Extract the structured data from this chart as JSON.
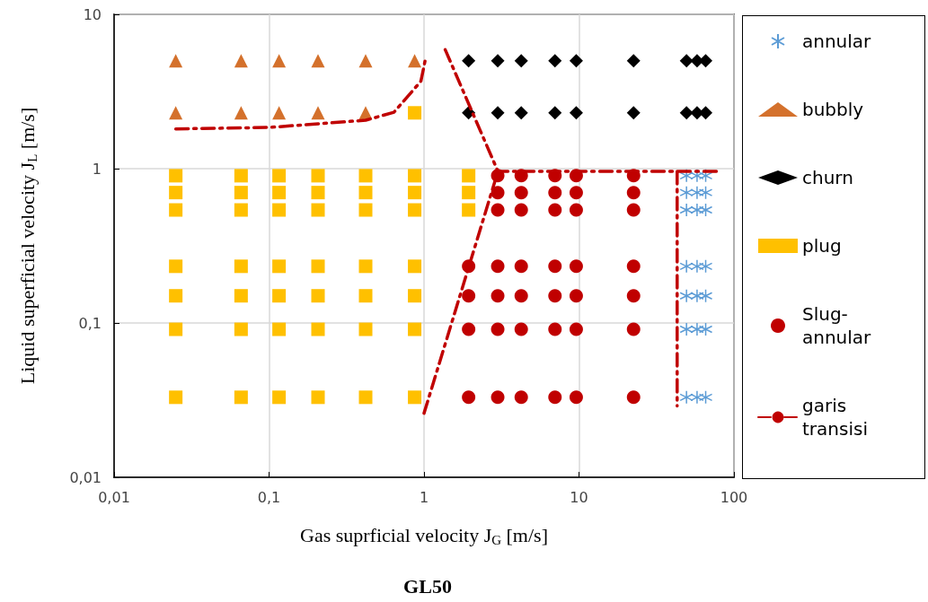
{
  "chart_data": {
    "type": "scatter",
    "title": "GL50",
    "xlabel": "Gas suprficial velocity J$_{G}$ [m/s]",
    "ylabel": "Liquid superficial velocity J$_{L}$ [m/s]",
    "log": "xy",
    "grid": true,
    "legend": "right",
    "xlim": [
      0.01,
      100
    ],
    "xticks": [
      {
        "value": 0.01,
        "label": "0,01"
      },
      {
        "value": 0.1,
        "label": "0,1"
      },
      1,
      10,
      100
    ],
    "ylim": [
      0.01,
      10
    ],
    "yticks": [
      {
        "value": 0.01,
        "label": "0,01"
      },
      {
        "value": 0.1,
        "label": "0,1"
      },
      1,
      10
    ],
    "series": [
      {
        "name": "annular",
        "color": "#5b9bd5",
        "marker": "cross",
        "x": [
          49.4,
          57.8,
          65.7,
          49.4,
          57.8,
          65.7,
          49.4,
          57.8,
          65.7,
          49.4,
          57.8,
          65.7,
          49.4,
          57.8,
          65.7,
          49.4,
          57.8,
          65.7,
          49.4,
          57.8,
          65.7
        ],
        "values": [
          0.9,
          0.9,
          0.9,
          0.7,
          0.7,
          0.7,
          0.54,
          0.54,
          0.54,
          0.233,
          0.233,
          0.233,
          0.15,
          0.15,
          0.15,
          0.091,
          0.091,
          0.091,
          0.033,
          0.033,
          0.033
        ]
      },
      {
        "name": "bubbly",
        "color": "#d4712c",
        "marker": "triangle",
        "x": [
          0.025,
          0.066,
          0.116,
          0.207,
          0.42,
          0.87,
          0.025,
          0.066,
          0.116,
          0.207,
          0.42
        ],
        "values": [
          5,
          5,
          5,
          5,
          5,
          5,
          2.3,
          2.3,
          2.3,
          2.3,
          2.3
        ]
      },
      {
        "name": "churn",
        "color": "#000000",
        "marker": "diamond",
        "x": [
          1.94,
          2.99,
          4.24,
          7,
          9.6,
          22.5,
          49.4,
          57.8,
          65.7,
          1.94,
          2.99,
          4.24,
          7,
          9.6,
          22.5,
          49.4,
          57.8,
          65.7
        ],
        "values": [
          5,
          5,
          5,
          5,
          5,
          5,
          5,
          5,
          5,
          2.3,
          2.3,
          2.3,
          2.3,
          2.3,
          2.3,
          2.3,
          2.3,
          2.3
        ]
      },
      {
        "name": "plug",
        "color": "#ffc000",
        "marker": "square",
        "x": [
          0.87,
          0.025,
          0.066,
          0.116,
          0.207,
          0.42,
          0.87,
          1.94,
          0.025,
          0.066,
          0.116,
          0.207,
          0.42,
          0.87,
          1.94,
          0.025,
          0.066,
          0.116,
          0.207,
          0.42,
          0.87,
          1.94,
          0.025,
          0.066,
          0.116,
          0.207,
          0.42,
          0.87,
          0.025,
          0.066,
          0.116,
          0.207,
          0.42,
          0.87,
          0.025,
          0.066,
          0.116,
          0.207,
          0.42,
          0.87,
          0.025,
          0.066,
          0.116,
          0.207,
          0.42,
          0.87
        ],
        "values": [
          2.3,
          0.9,
          0.9,
          0.9,
          0.9,
          0.9,
          0.9,
          0.9,
          0.7,
          0.7,
          0.7,
          0.7,
          0.7,
          0.7,
          0.7,
          0.54,
          0.54,
          0.54,
          0.54,
          0.54,
          0.54,
          0.54,
          0.233,
          0.233,
          0.233,
          0.233,
          0.233,
          0.233,
          0.15,
          0.15,
          0.15,
          0.15,
          0.15,
          0.15,
          0.091,
          0.091,
          0.091,
          0.091,
          0.091,
          0.091,
          0.033,
          0.033,
          0.033,
          0.033,
          0.033,
          0.033
        ]
      },
      {
        "name": "Slug-annular",
        "color": "#c00000",
        "marker": "circle",
        "x": [
          2.99,
          4.24,
          7,
          9.6,
          22.5,
          2.99,
          4.24,
          7,
          9.6,
          22.5,
          2.99,
          4.24,
          7,
          9.6,
          22.5,
          1.94,
          2.99,
          4.24,
          7,
          9.6,
          22.5,
          1.94,
          2.99,
          4.24,
          7,
          9.6,
          22.5,
          1.94,
          2.99,
          4.24,
          7,
          9.6,
          22.5,
          1.94,
          2.99,
          4.24,
          7,
          9.6,
          22.5
        ],
        "values": [
          0.9,
          0.9,
          0.9,
          0.9,
          0.9,
          0.7,
          0.7,
          0.7,
          0.7,
          0.7,
          0.54,
          0.54,
          0.54,
          0.54,
          0.54,
          0.233,
          0.233,
          0.233,
          0.233,
          0.233,
          0.233,
          0.15,
          0.15,
          0.15,
          0.15,
          0.15,
          0.15,
          0.091,
          0.091,
          0.091,
          0.091,
          0.091,
          0.091,
          0.033,
          0.033,
          0.033,
          0.033,
          0.033,
          0.033
        ]
      },
      {
        "name": "garis transisi",
        "color": "#c00000",
        "type": "line",
        "marker": "none",
        "line_style": "dashed",
        "x": [
          0.025,
          0.1,
          0.42,
          0.64,
          0.955,
          1.03,
          null,
          1.37,
          3,
          83,
          null,
          1,
          3,
          null,
          43,
          43
        ],
        "values": [
          1.81,
          1.85,
          2.06,
          2.32,
          3.69,
          5.35,
          null,
          5.9,
          0.96,
          0.96,
          null,
          0.026,
          0.96,
          null,
          0.96,
          0.029
        ]
      }
    ]
  }
}
